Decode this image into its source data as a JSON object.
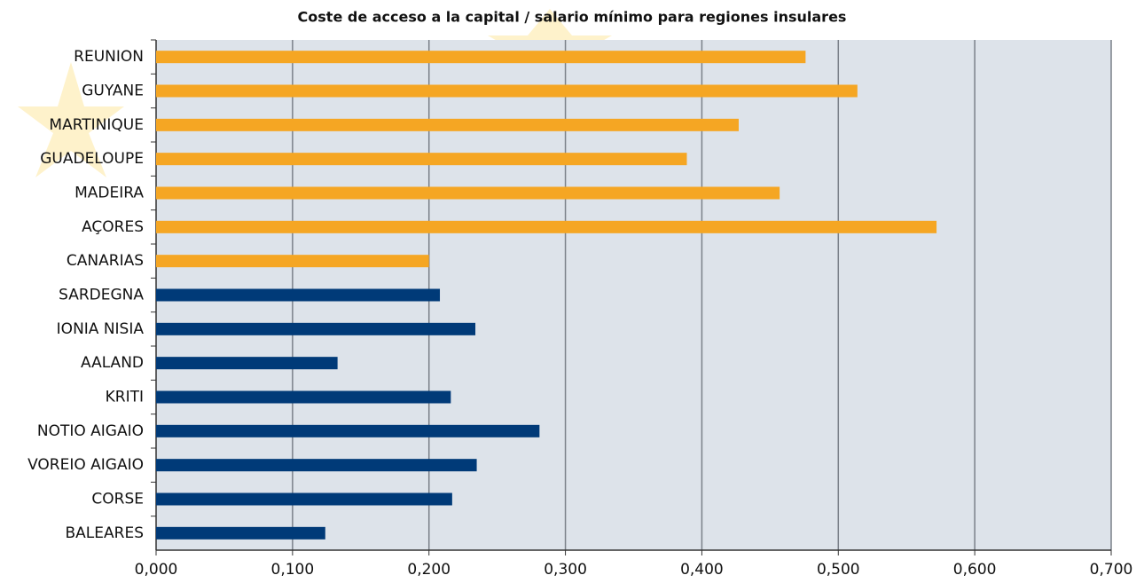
{
  "chart_data": {
    "type": "bar",
    "orientation": "horizontal",
    "title": "Coste de acceso a la capital / salario mínimo para regiones insulares",
    "categories": [
      "REUNION",
      "GUYANE",
      "MARTINIQUE",
      "GUADELOUPE",
      "MADEIRA",
      "AÇORES",
      "CANARIAS",
      "SARDEGNA",
      "IONIA NISIA",
      "AALAND",
      "KRITI",
      "NOTIO AIGAIO",
      "VOREIO AIGAIO",
      "CORSE",
      "BALEARES"
    ],
    "values": [
      0.476,
      0.514,
      0.427,
      0.389,
      0.457,
      0.572,
      0.2,
      0.208,
      0.234,
      0.133,
      0.216,
      0.281,
      0.235,
      0.217,
      0.124
    ],
    "colors": [
      "#f5a623",
      "#f5a623",
      "#f5a623",
      "#f5a623",
      "#f5a623",
      "#f5a623",
      "#f5a623",
      "#003a78",
      "#003a78",
      "#003a78",
      "#003a78",
      "#003a78",
      "#003a78",
      "#003a78",
      "#003a78"
    ],
    "xlim": [
      0,
      0.7
    ],
    "xticks": [
      {
        "value": 0,
        "label": "0,000"
      },
      {
        "value": 0.1,
        "label": "0,100"
      },
      {
        "value": 0.2,
        "label": "0,200"
      },
      {
        "value": 0.3,
        "label": "0,300"
      },
      {
        "value": 0.4,
        "label": "0,400"
      },
      {
        "value": 0.5,
        "label": "0,500"
      },
      {
        "value": 0.6,
        "label": "0,600"
      },
      {
        "value": 0.7,
        "label": "0,700"
      }
    ],
    "grid": true
  }
}
